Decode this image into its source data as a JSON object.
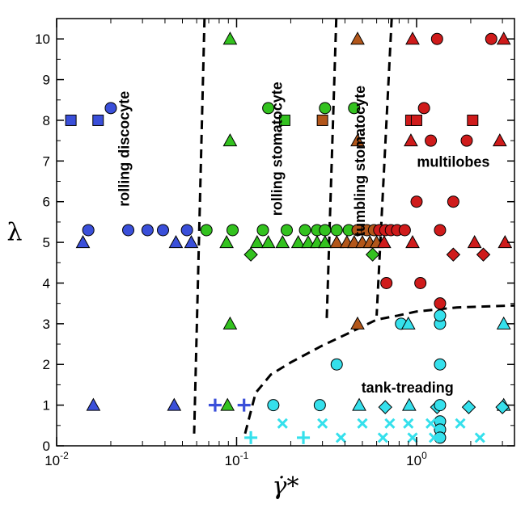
{
  "chart_data": {
    "type": "scatter",
    "title": "",
    "xlabel": "γ̇*",
    "ylabel": "λ",
    "xscale": "log",
    "xlim": [
      0.01,
      3.5
    ],
    "ylim": [
      0,
      10.5
    ],
    "grid": false,
    "legend": "none",
    "x_ticks": [
      0.01,
      0.1,
      1
    ],
    "x_tick_labels": [
      {
        "base": "10",
        "exp": "-2"
      },
      {
        "base": "10",
        "exp": "-1"
      },
      {
        "base": "10",
        "exp": "0"
      }
    ],
    "y_ticks": [
      0,
      1,
      2,
      3,
      4,
      5,
      6,
      7,
      8,
      9,
      10
    ],
    "y_tick_labels": [
      "0",
      "1",
      "2",
      "3",
      "4",
      "5",
      "6",
      "7",
      "8",
      "9",
      "10"
    ],
    "colors": {
      "blue": "#3a4fd9",
      "green": "#33c21f",
      "brown": "#b2561a",
      "red": "#cf1b1b",
      "cyan": "#35e0ec"
    },
    "region_labels": [
      {
        "text": "rolling discocyte",
        "x": 0.024,
        "y": 7.3,
        "rotate": true
      },
      {
        "text": "rolling stomatocyte",
        "x": 0.17,
        "y": 7.3,
        "rotate": true
      },
      {
        "text": "tumbling stomatocyte",
        "x": 0.49,
        "y": 7.0,
        "rotate": true
      },
      {
        "text": "multilobes",
        "x": 1.6,
        "y": 6.95,
        "rotate": false
      },
      {
        "text": "tank-treading",
        "x": 0.89,
        "y": 1.4,
        "rotate": false
      }
    ],
    "boundaries": [
      {
        "name": "discocyte-stomatocyte",
        "points": [
          [
            0.0663,
            10.5
          ],
          [
            0.0581,
            0.3
          ]
        ]
      },
      {
        "name": "stomatocyte-tumbling",
        "points": [
          [
            0.3578,
            10.5
          ],
          [
            0.3165,
            3.05
          ]
        ]
      },
      {
        "name": "tumbling-multilobes",
        "points": [
          [
            0.7275,
            10.5
          ],
          [
            0.6001,
            3.2
          ]
        ]
      },
      {
        "name": "tank-treading",
        "points": [
          [
            0.1115,
            0.3
          ],
          [
            0.1275,
            1.3
          ],
          [
            0.155,
            1.75
          ],
          [
            0.2,
            2.05
          ],
          [
            0.2954,
            2.45
          ],
          [
            0.4343,
            2.8
          ],
          [
            0.6001,
            3.1
          ],
          [
            0.7843,
            3.2
          ],
          [
            1.0,
            3.3
          ],
          [
            1.2929,
            3.35
          ],
          [
            1.6716,
            3.4
          ],
          [
            3.5,
            3.45
          ]
        ]
      }
    ],
    "series": [
      {
        "color": "blue",
        "points": [
          {
            "m": "square",
            "x": 0.012,
            "y": 8
          },
          {
            "m": "square",
            "x": 0.017,
            "y": 8
          },
          {
            "m": "circle",
            "x": 0.02,
            "y": 8.3
          },
          {
            "m": "triangle",
            "x": 0.014,
            "y": 5
          },
          {
            "m": "circle",
            "x": 0.015,
            "y": 5.3
          },
          {
            "m": "circle",
            "x": 0.025,
            "y": 5.3
          },
          {
            "m": "circle",
            "x": 0.032,
            "y": 5.3
          },
          {
            "m": "circle",
            "x": 0.039,
            "y": 5.3
          },
          {
            "m": "triangle",
            "x": 0.046,
            "y": 5
          },
          {
            "m": "circle",
            "x": 0.053,
            "y": 5.3
          },
          {
            "m": "triangle",
            "x": 0.056,
            "y": 5
          },
          {
            "m": "triangle",
            "x": 0.016,
            "y": 1
          },
          {
            "m": "triangle",
            "x": 0.045,
            "y": 1
          },
          {
            "m": "plus",
            "x": 0.076,
            "y": 1
          },
          {
            "m": "plus",
            "x": 0.11,
            "y": 1
          }
        ]
      },
      {
        "color": "green",
        "points": [
          {
            "m": "triangle",
            "x": 0.092,
            "y": 10
          },
          {
            "m": "circle",
            "x": 0.15,
            "y": 8.3
          },
          {
            "m": "square",
            "x": 0.185,
            "y": 8
          },
          {
            "m": "circle",
            "x": 0.31,
            "y": 8.3
          },
          {
            "m": "circle",
            "x": 0.45,
            "y": 8.3
          },
          {
            "m": "triangle",
            "x": 0.092,
            "y": 7.5
          },
          {
            "m": "circle",
            "x": 0.068,
            "y": 5.3
          },
          {
            "m": "circle",
            "x": 0.095,
            "y": 5.3
          },
          {
            "m": "circle",
            "x": 0.14,
            "y": 5.3
          },
          {
            "m": "circle",
            "x": 0.19,
            "y": 5.3
          },
          {
            "m": "circle",
            "x": 0.24,
            "y": 5.3
          },
          {
            "m": "circle",
            "x": 0.28,
            "y": 5.3
          },
          {
            "m": "circle",
            "x": 0.31,
            "y": 5.3
          },
          {
            "m": "circle",
            "x": 0.36,
            "y": 5.3
          },
          {
            "m": "circle",
            "x": 0.42,
            "y": 5.3
          },
          {
            "m": "triangle",
            "x": 0.088,
            "y": 5
          },
          {
            "m": "triangle",
            "x": 0.13,
            "y": 5
          },
          {
            "m": "triangle",
            "x": 0.15,
            "y": 5
          },
          {
            "m": "triangle",
            "x": 0.18,
            "y": 5
          },
          {
            "m": "triangle",
            "x": 0.22,
            "y": 5
          },
          {
            "m": "triangle",
            "x": 0.25,
            "y": 5
          },
          {
            "m": "triangle",
            "x": 0.28,
            "y": 5
          },
          {
            "m": "triangle",
            "x": 0.31,
            "y": 5
          },
          {
            "m": "diamond",
            "x": 0.12,
            "y": 4.7
          },
          {
            "m": "diamond",
            "x": 0.57,
            "y": 4.7
          },
          {
            "m": "triangle",
            "x": 0.092,
            "y": 3
          },
          {
            "m": "triangle",
            "x": 0.089,
            "y": 1
          }
        ]
      },
      {
        "color": "brown",
        "points": [
          {
            "m": "triangle",
            "x": 0.47,
            "y": 10
          },
          {
            "m": "square",
            "x": 0.3,
            "y": 8
          },
          {
            "m": "triangle",
            "x": 0.47,
            "y": 7.5
          },
          {
            "m": "circle",
            "x": 0.47,
            "y": 5.3
          },
          {
            "m": "circle",
            "x": 0.53,
            "y": 5.3
          },
          {
            "m": "circle",
            "x": 0.58,
            "y": 5.3
          },
          {
            "m": "triangle",
            "x": 0.36,
            "y": 5
          },
          {
            "m": "triangle",
            "x": 0.41,
            "y": 5
          },
          {
            "m": "triangle",
            "x": 0.45,
            "y": 5
          },
          {
            "m": "triangle",
            "x": 0.5,
            "y": 5
          },
          {
            "m": "triangle",
            "x": 0.55,
            "y": 5
          },
          {
            "m": "triangle",
            "x": 0.6,
            "y": 5
          },
          {
            "m": "triangle",
            "x": 0.47,
            "y": 3
          }
        ]
      },
      {
        "color": "red",
        "points": [
          {
            "m": "triangle",
            "x": 0.95,
            "y": 10
          },
          {
            "m": "circle",
            "x": 1.3,
            "y": 10
          },
          {
            "m": "circle",
            "x": 2.6,
            "y": 10
          },
          {
            "m": "triangle",
            "x": 3.05,
            "y": 10
          },
          {
            "m": "square",
            "x": 0.93,
            "y": 8
          },
          {
            "m": "square",
            "x": 1.0,
            "y": 8
          },
          {
            "m": "square",
            "x": 2.05,
            "y": 8
          },
          {
            "m": "circle",
            "x": 1.1,
            "y": 8.3
          },
          {
            "m": "triangle",
            "x": 0.93,
            "y": 7.5
          },
          {
            "m": "circle",
            "x": 1.2,
            "y": 7.5
          },
          {
            "m": "circle",
            "x": 1.9,
            "y": 7.5
          },
          {
            "m": "triangle",
            "x": 2.9,
            "y": 7.5
          },
          {
            "m": "circle",
            "x": 1.0,
            "y": 6
          },
          {
            "m": "circle",
            "x": 1.6,
            "y": 6
          },
          {
            "m": "circle",
            "x": 0.62,
            "y": 5.3
          },
          {
            "m": "circle",
            "x": 0.67,
            "y": 5.3
          },
          {
            "m": "circle",
            "x": 0.72,
            "y": 5.3
          },
          {
            "m": "circle",
            "x": 0.78,
            "y": 5.3
          },
          {
            "m": "circle",
            "x": 0.86,
            "y": 5.3
          },
          {
            "m": "circle",
            "x": 1.35,
            "y": 5.3
          },
          {
            "m": "triangle",
            "x": 0.66,
            "y": 5
          },
          {
            "m": "triangle",
            "x": 0.95,
            "y": 5
          },
          {
            "m": "triangle",
            "x": 2.1,
            "y": 5
          },
          {
            "m": "triangle",
            "x": 3.1,
            "y": 5
          },
          {
            "m": "diamond",
            "x": 1.6,
            "y": 4.7
          },
          {
            "m": "diamond",
            "x": 2.35,
            "y": 4.7
          },
          {
            "m": "circle",
            "x": 0.68,
            "y": 4
          },
          {
            "m": "circle",
            "x": 1.05,
            "y": 4
          },
          {
            "m": "circle",
            "x": 1.35,
            "y": 3.5
          }
        ]
      },
      {
        "color": "cyan",
        "points": [
          {
            "m": "circle",
            "x": 0.82,
            "y": 3
          },
          {
            "m": "triangle",
            "x": 0.9,
            "y": 3
          },
          {
            "m": "circle",
            "x": 1.35,
            "y": 3
          },
          {
            "m": "circle",
            "x": 1.35,
            "y": 3.2
          },
          {
            "m": "triangle",
            "x": 3.05,
            "y": 3
          },
          {
            "m": "circle",
            "x": 0.36,
            "y": 2
          },
          {
            "m": "circle",
            "x": 1.35,
            "y": 2
          },
          {
            "m": "circle",
            "x": 0.16,
            "y": 1
          },
          {
            "m": "circle",
            "x": 0.29,
            "y": 1
          },
          {
            "m": "triangle",
            "x": 0.48,
            "y": 1
          },
          {
            "m": "diamond",
            "x": 0.67,
            "y": 0.95
          },
          {
            "m": "triangle",
            "x": 0.91,
            "y": 1
          },
          {
            "m": "diamond",
            "x": 1.3,
            "y": 0.95
          },
          {
            "m": "circle",
            "x": 1.35,
            "y": 1
          },
          {
            "m": "diamond",
            "x": 1.95,
            "y": 0.95
          },
          {
            "m": "triangle",
            "x": 3.05,
            "y": 1
          },
          {
            "m": "diamond",
            "x": 3.0,
            "y": 0.95
          },
          {
            "m": "circle",
            "x": 1.35,
            "y": 0.6
          },
          {
            "m": "circle",
            "x": 1.35,
            "y": 0.4
          },
          {
            "m": "circle",
            "x": 1.35,
            "y": 0.2
          },
          {
            "m": "plus",
            "x": 0.12,
            "y": 0.2
          },
          {
            "m": "plus",
            "x": 0.235,
            "y": 0.2
          },
          {
            "m": "cross",
            "x": 0.18,
            "y": 0.55
          },
          {
            "m": "cross",
            "x": 0.3,
            "y": 0.55
          },
          {
            "m": "cross",
            "x": 0.5,
            "y": 0.55
          },
          {
            "m": "cross",
            "x": 0.71,
            "y": 0.55
          },
          {
            "m": "cross",
            "x": 0.9,
            "y": 0.55
          },
          {
            "m": "cross",
            "x": 1.2,
            "y": 0.55
          },
          {
            "m": "cross",
            "x": 1.75,
            "y": 0.55
          },
          {
            "m": "cross",
            "x": 0.38,
            "y": 0.2
          },
          {
            "m": "cross",
            "x": 0.65,
            "y": 0.2
          },
          {
            "m": "cross",
            "x": 0.95,
            "y": 0.2
          },
          {
            "m": "cross",
            "x": 1.25,
            "y": 0.2
          },
          {
            "m": "cross",
            "x": 2.25,
            "y": 0.2
          }
        ]
      }
    ]
  }
}
